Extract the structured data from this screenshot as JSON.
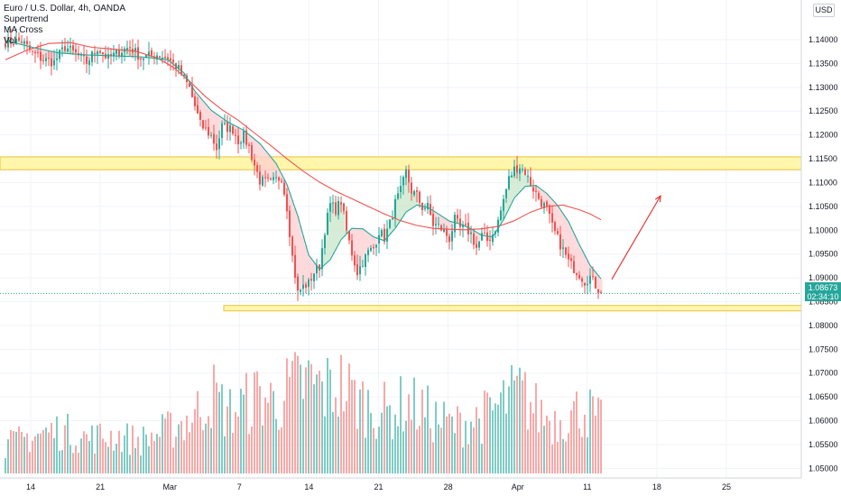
{
  "legend": {
    "symbol": "Euro / U.S. Dollar, 4h, OANDA",
    "indicators": [
      "Supertrend",
      "MA Cross",
      "Vol"
    ]
  },
  "currency_button": "USD",
  "last_price": {
    "value": "1.08673",
    "countdown": "02:34:10"
  },
  "colors": {
    "up": "#26a69a",
    "down": "#ef5350",
    "ma_fast": "#26a69a",
    "ma_slow": "#ef5350",
    "zone_fill": "#fff59d",
    "zone_border": "#e8c33a",
    "vol_up": "#80cbc4",
    "vol_down": "#f7a9a8",
    "arrow": "#e53935"
  },
  "chart_data": {
    "type": "candlestick",
    "title": "Euro / U.S. Dollar, 4h, OANDA",
    "x_tick_labels": [
      "14",
      "21",
      "Mar",
      "7",
      "14",
      "21",
      "28",
      "Apr",
      "11",
      "18",
      "25"
    ],
    "y_tick_labels": [
      "1.14000",
      "1.13500",
      "1.13000",
      "1.12500",
      "1.12000",
      "1.11500",
      "1.11000",
      "1.10500",
      "1.10000",
      "1.09500",
      "1.09000",
      "1.08500",
      "1.08000",
      "1.07500",
      "1.07000",
      "1.06500",
      "1.06000",
      "1.05500",
      "1.05000"
    ],
    "ylim": [
      1.0495,
      1.1436
    ],
    "last_price": 1.08673,
    "resistance_zone": [
      1.1127,
      1.1154
    ],
    "support_zone": [
      1.0835,
      1.0842
    ],
    "close_path": [
      [
        0,
        1.1395
      ],
      [
        6,
        1.1398
      ],
      [
        10,
        1.1372
      ],
      [
        14,
        1.1358
      ],
      [
        18,
        1.1353
      ],
      [
        22,
        1.1385
      ],
      [
        26,
        1.137
      ],
      [
        30,
        1.1352
      ],
      [
        34,
        1.1383
      ],
      [
        38,
        1.136
      ],
      [
        42,
        1.1375
      ],
      [
        46,
        1.1385
      ],
      [
        50,
        1.1362
      ],
      [
        56,
        1.1369
      ],
      [
        60,
        1.1362
      ],
      [
        64,
        1.1338
      ],
      [
        68,
        1.1298
      ],
      [
        72,
        1.1222
      ],
      [
        76,
        1.1198
      ],
      [
        78,
        1.1172
      ],
      [
        80,
        1.1218
      ],
      [
        84,
        1.1212
      ],
      [
        86,
        1.1188
      ],
      [
        88,
        1.1197
      ],
      [
        90,
        1.1174
      ],
      [
        92,
        1.1137
      ],
      [
        94,
        1.1104
      ],
      [
        98,
        1.1099
      ],
      [
        102,
        1.1112
      ],
      [
        104,
        1.1049
      ],
      [
        106,
        1.0944
      ],
      [
        108,
        1.0868
      ],
      [
        110,
        1.0882
      ],
      [
        112,
        1.0888
      ],
      [
        114,
        1.0912
      ],
      [
        116,
        1.0924
      ],
      [
        118,
        1.1001
      ],
      [
        120,
        1.1054
      ],
      [
        122,
        1.1044
      ],
      [
        124,
        1.1061
      ],
      [
        126,
        1.0998
      ],
      [
        128,
        1.0952
      ],
      [
        130,
        1.0912
      ],
      [
        132,
        1.0934
      ],
      [
        134,
        1.0954
      ],
      [
        136,
        1.0962
      ],
      [
        138,
        1.0998
      ],
      [
        140,
        1.0984
      ],
      [
        142,
        1.1014
      ],
      [
        144,
        1.1057
      ],
      [
        146,
        1.1082
      ],
      [
        148,
        1.1122
      ],
      [
        150,
        1.1082
      ],
      [
        152,
        1.1072
      ],
      [
        154,
        1.1048
      ],
      [
        156,
        1.1049
      ],
      [
        158,
        1.1012
      ],
      [
        160,
        1.1008
      ],
      [
        162,
        1.0998
      ],
      [
        164,
        1.0982
      ],
      [
        166,
        1.1022
      ],
      [
        168,
        1.1004
      ],
      [
        170,
        1.1004
      ],
      [
        172,
        1.0992
      ],
      [
        174,
        1.0963
      ],
      [
        176,
        1.0988
      ],
      [
        178,
        1.0978
      ],
      [
        180,
        1.0992
      ],
      [
        182,
        1.1018
      ],
      [
        184,
        1.1064
      ],
      [
        186,
        1.1108
      ],
      [
        188,
        1.1128
      ],
      [
        190,
        1.1134
      ],
      [
        192,
        1.1122
      ],
      [
        194,
        1.1097
      ],
      [
        196,
        1.1077
      ],
      [
        198,
        1.1058
      ],
      [
        200,
        1.1044
      ],
      [
        202,
        1.1007
      ],
      [
        204,
        1.0982
      ],
      [
        206,
        1.0958
      ],
      [
        208,
        1.0934
      ],
      [
        210,
        1.092
      ],
      [
        212,
        1.0908
      ],
      [
        214,
        1.0893
      ],
      [
        216,
        1.0902
      ],
      [
        218,
        1.0885
      ],
      [
        220,
        1.0868
      ]
    ],
    "ma_fast_path": [
      [
        0,
        1.1398
      ],
      [
        10,
        1.1384
      ],
      [
        20,
        1.1372
      ],
      [
        30,
        1.1368
      ],
      [
        40,
        1.1366
      ],
      [
        50,
        1.1364
      ],
      [
        60,
        1.1358
      ],
      [
        66,
        1.133
      ],
      [
        70,
        1.1292
      ],
      [
        76,
        1.1252
      ],
      [
        82,
        1.1228
      ],
      [
        88,
        1.121
      ],
      [
        94,
        1.1182
      ],
      [
        100,
        1.114
      ],
      [
        104,
        1.1096
      ],
      [
        108,
        1.103
      ],
      [
        112,
        1.0948
      ],
      [
        116,
        1.0918
      ],
      [
        120,
        1.0938
      ],
      [
        124,
        1.098
      ],
      [
        128,
        1.1004
      ],
      [
        132,
        1.1003
      ],
      [
        136,
        1.0986
      ],
      [
        140,
        1.0978
      ],
      [
        144,
        1.1004
      ],
      [
        148,
        1.1038
      ],
      [
        152,
        1.1053
      ],
      [
        156,
        1.1048
      ],
      [
        160,
        1.1034
      ],
      [
        164,
        1.1019
      ],
      [
        168,
        1.1013
      ],
      [
        172,
        1.1003
      ],
      [
        176,
        1.0989
      ],
      [
        180,
        1.0986
      ],
      [
        184,
        1.1022
      ],
      [
        188,
        1.1068
      ],
      [
        192,
        1.1092
      ],
      [
        196,
        1.1094
      ],
      [
        200,
        1.1077
      ],
      [
        204,
        1.1052
      ],
      [
        208,
        1.1018
      ],
      [
        212,
        1.097
      ],
      [
        216,
        1.0926
      ],
      [
        220,
        1.0898
      ]
    ],
    "ma_slow_path": [
      [
        0,
        1.1358
      ],
      [
        8,
        1.1378
      ],
      [
        16,
        1.1392
      ],
      [
        24,
        1.1394
      ],
      [
        32,
        1.1384
      ],
      [
        40,
        1.138
      ],
      [
        48,
        1.1376
      ],
      [
        56,
        1.1362
      ],
      [
        62,
        1.1342
      ],
      [
        68,
        1.1313
      ],
      [
        74,
        1.128
      ],
      [
        80,
        1.1253
      ],
      [
        86,
        1.1231
      ],
      [
        92,
        1.1204
      ],
      [
        98,
        1.1178
      ],
      [
        104,
        1.115
      ],
      [
        110,
        1.1124
      ],
      [
        116,
        1.1101
      ],
      [
        122,
        1.1082
      ],
      [
        128,
        1.1066
      ],
      [
        134,
        1.105
      ],
      [
        140,
        1.1034
      ],
      [
        146,
        1.102
      ],
      [
        152,
        1.101
      ],
      [
        158,
        1.1004
      ],
      [
        164,
        1.1002
      ],
      [
        170,
        1.1001
      ],
      [
        176,
        1.1003
      ],
      [
        182,
        1.1008
      ],
      [
        188,
        1.102
      ],
      [
        194,
        1.1038
      ],
      [
        200,
        1.105
      ],
      [
        206,
        1.1053
      ],
      [
        212,
        1.1043
      ],
      [
        216,
        1.1034
      ],
      [
        220,
        1.1022
      ]
    ],
    "volume_profile": [
      [
        0,
        0.22
      ],
      [
        10,
        0.3
      ],
      [
        20,
        0.34
      ],
      [
        30,
        0.28
      ],
      [
        40,
        0.3
      ],
      [
        50,
        0.26
      ],
      [
        60,
        0.34
      ],
      [
        70,
        0.46
      ],
      [
        76,
        0.64
      ],
      [
        82,
        0.48
      ],
      [
        88,
        0.54
      ],
      [
        94,
        0.62
      ],
      [
        100,
        0.56
      ],
      [
        106,
        0.68
      ],
      [
        112,
        0.72
      ],
      [
        118,
        0.66
      ],
      [
        124,
        0.7
      ],
      [
        130,
        0.58
      ],
      [
        136,
        0.52
      ],
      [
        142,
        0.48
      ],
      [
        148,
        0.56
      ],
      [
        154,
        0.5
      ],
      [
        160,
        0.42
      ],
      [
        166,
        0.38
      ],
      [
        172,
        0.42
      ],
      [
        178,
        0.46
      ],
      [
        184,
        0.56
      ],
      [
        190,
        0.64
      ],
      [
        196,
        0.5
      ],
      [
        202,
        0.42
      ],
      [
        208,
        0.46
      ],
      [
        214,
        0.52
      ],
      [
        220,
        0.4
      ]
    ],
    "arrow": {
      "from": [
        224,
        1.0897
      ],
      "to": [
        242,
        1.1072
      ]
    }
  }
}
